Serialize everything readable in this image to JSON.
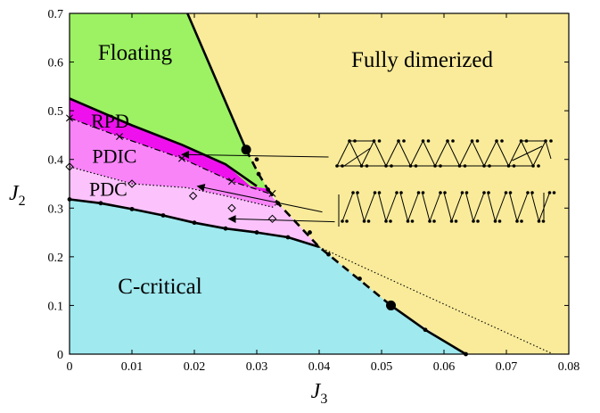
{
  "chart_data": {
    "type": "phase-diagram",
    "xlabel": "J",
    "xlabel_sub": "3",
    "ylabel": "J",
    "ylabel_sub": "2",
    "xlim": [
      0,
      0.08
    ],
    "ylim": [
      0,
      0.7
    ],
    "xticks": [
      "0",
      "0.01",
      "0.02",
      "0.03",
      "0.04",
      "0.05",
      "0.06",
      "0.07",
      "0.08"
    ],
    "yticks": [
      "0",
      "0.1",
      "0.2",
      "0.3",
      "0.4",
      "0.5",
      "0.6",
      "0.7"
    ],
    "colors": {
      "fully_dimerized": "#f9eb9a",
      "floating": "#9cf262",
      "rpd": "#ee11ee",
      "pdic": "#f884f8",
      "pdc": "#fbc2fb",
      "c_critical": "#9fe9ef"
    },
    "regions": [
      {
        "label": "Floating",
        "color_key": "floating",
        "polygon": [
          [
            0,
            0.7
          ],
          [
            0.0189,
            0.7
          ],
          [
            0.0283,
            0.42
          ],
          [
            0.0317,
            0.34
          ],
          [
            0.029,
            0.345
          ],
          [
            0.025,
            0.39
          ],
          [
            0.018,
            0.43
          ],
          [
            0.01,
            0.47
          ],
          [
            0,
            0.525
          ]
        ]
      },
      {
        "label": "RPD",
        "color_key": "rpd",
        "polygon": [
          [
            0,
            0.525
          ],
          [
            0.01,
            0.47
          ],
          [
            0.018,
            0.43
          ],
          [
            0.025,
            0.39
          ],
          [
            0.029,
            0.345
          ],
          [
            0.0317,
            0.34
          ],
          [
            0.032,
            0.33
          ],
          [
            0.026,
            0.355
          ],
          [
            0.018,
            0.402
          ],
          [
            0.008,
            0.447
          ],
          [
            0,
            0.485
          ]
        ]
      },
      {
        "label": "PDIC",
        "color_key": "pdic",
        "polygon": [
          [
            0,
            0.485
          ],
          [
            0.008,
            0.447
          ],
          [
            0.018,
            0.402
          ],
          [
            0.026,
            0.355
          ],
          [
            0.032,
            0.33
          ],
          [
            0.0334,
            0.31
          ],
          [
            0.0325,
            0.302
          ],
          [
            0.025,
            0.325
          ],
          [
            0.0188,
            0.342
          ],
          [
            0.01,
            0.35
          ],
          [
            0,
            0.385
          ]
        ]
      },
      {
        "label": "PDC",
        "color_key": "pdc",
        "polygon": [
          [
            0,
            0.385
          ],
          [
            0.01,
            0.35
          ],
          [
            0.0188,
            0.342
          ],
          [
            0.025,
            0.325
          ],
          [
            0.0325,
            0.302
          ],
          [
            0.0334,
            0.31
          ],
          [
            0.04,
            0.22
          ],
          [
            0.035,
            0.24
          ],
          [
            0.03,
            0.25
          ],
          [
            0.025,
            0.258
          ],
          [
            0.02,
            0.27
          ],
          [
            0.015,
            0.285
          ],
          [
            0.01,
            0.298
          ],
          [
            0.005,
            0.31
          ],
          [
            0,
            0.318
          ]
        ]
      },
      {
        "label": "C-critical",
        "color_key": "c_critical",
        "polygon": [
          [
            0,
            0.318
          ],
          [
            0.005,
            0.31
          ],
          [
            0.01,
            0.298
          ],
          [
            0.015,
            0.285
          ],
          [
            0.02,
            0.27
          ],
          [
            0.025,
            0.258
          ],
          [
            0.03,
            0.25
          ],
          [
            0.035,
            0.24
          ],
          [
            0.04,
            0.22
          ],
          [
            0.0515,
            0.1
          ],
          [
            0.057,
            0.05
          ],
          [
            0.0635,
            0
          ],
          [
            0,
            0
          ]
        ]
      },
      {
        "label": "Fully dimerized",
        "color_key": "fully_dimerized",
        "polygon": [
          [
            0.0189,
            0.7
          ],
          [
            0.08,
            0.7
          ],
          [
            0.08,
            0
          ],
          [
            0.0635,
            0
          ],
          [
            0.0515,
            0.1
          ],
          [
            0.04,
            0.22
          ],
          [
            0.0334,
            0.31
          ],
          [
            0.0317,
            0.34
          ],
          [
            0.0283,
            0.42
          ]
        ]
      }
    ],
    "boundaries": [
      {
        "style": "solid",
        "points": [
          [
            0.0189,
            0.7
          ],
          [
            0.0283,
            0.42
          ]
        ]
      },
      {
        "style": "dashed",
        "points": [
          [
            0.0283,
            0.42
          ],
          [
            0.0303,
            0.37
          ],
          [
            0.0318,
            0.338
          ]
        ]
      },
      {
        "style": "solid",
        "points": [
          [
            0,
            0.525
          ],
          [
            0.01,
            0.47
          ],
          [
            0.018,
            0.43
          ],
          [
            0.025,
            0.39
          ],
          [
            0.03,
            0.345
          ]
        ]
      },
      {
        "style": "dashdot",
        "points": [
          [
            0,
            0.485
          ],
          [
            0.008,
            0.447
          ],
          [
            0.018,
            0.402
          ],
          [
            0.026,
            0.355
          ],
          [
            0.032,
            0.33
          ]
        ]
      },
      {
        "style": "dotted",
        "points": [
          [
            0,
            0.385
          ],
          [
            0.01,
            0.35
          ],
          [
            0.0188,
            0.342
          ],
          [
            0.025,
            0.325
          ],
          [
            0.0325,
            0.302
          ],
          [
            0.0334,
            0.31
          ]
        ]
      },
      {
        "style": "solid",
        "points": [
          [
            0,
            0.318
          ],
          [
            0.005,
            0.31
          ],
          [
            0.01,
            0.298
          ],
          [
            0.015,
            0.285
          ],
          [
            0.02,
            0.27
          ],
          [
            0.025,
            0.258
          ],
          [
            0.03,
            0.25
          ],
          [
            0.035,
            0.24
          ],
          [
            0.04,
            0.22
          ]
        ]
      },
      {
        "style": "dashed",
        "points": [
          [
            0.0318,
            0.338
          ],
          [
            0.0334,
            0.31
          ],
          [
            0.04,
            0.22
          ],
          [
            0.0515,
            0.1
          ]
        ]
      },
      {
        "style": "solid",
        "points": [
          [
            0.0515,
            0.1
          ],
          [
            0.057,
            0.05
          ],
          [
            0.0635,
            0
          ]
        ]
      },
      {
        "style": "thin-dotted",
        "points": [
          [
            0.04,
            0.22
          ],
          [
            0.0775,
            0
          ]
        ]
      }
    ],
    "markers": {
      "big_dots": [
        [
          0.0283,
          0.42
        ],
        [
          0.0515,
          0.1
        ]
      ],
      "small_dots": [
        [
          0,
          0.318
        ],
        [
          0.005,
          0.31
        ],
        [
          0.01,
          0.298
        ],
        [
          0.015,
          0.285
        ],
        [
          0.02,
          0.27
        ],
        [
          0.025,
          0.258
        ],
        [
          0.03,
          0.25
        ],
        [
          0.035,
          0.24
        ],
        [
          0.03,
          0.4
        ],
        [
          0.0303,
          0.37
        ],
        [
          0.0318,
          0.338
        ],
        [
          0.0334,
          0.31
        ],
        [
          0.0385,
          0.25
        ],
        [
          0.0415,
          0.205
        ],
        [
          0.0465,
          0.155
        ],
        [
          0.057,
          0.05
        ],
        [
          0.0635,
          0
        ]
      ],
      "crosses": [
        [
          0,
          0.485
        ],
        [
          0.008,
          0.447
        ],
        [
          0.018,
          0.402
        ],
        [
          0.026,
          0.355
        ],
        [
          0.0325,
          0.33
        ]
      ],
      "diamonds": [
        [
          0,
          0.385
        ],
        [
          0.01,
          0.35
        ],
        [
          0.0198,
          0.325
        ],
        [
          0.026,
          0.3
        ],
        [
          0.0325,
          0.278
        ]
      ]
    },
    "region_labels": [
      {
        "text": "Floating",
        "at": [
          0.0105,
          0.605
        ],
        "size": "large"
      },
      {
        "text": "Fully dimerized",
        "at": [
          0.0565,
          0.59
        ],
        "size": "large"
      },
      {
        "text": "RPD",
        "at": [
          0.0065,
          0.465
        ],
        "size": "small"
      },
      {
        "text": "PDIC",
        "at": [
          0.0072,
          0.393
        ],
        "size": "small"
      },
      {
        "text": "PDC",
        "at": [
          0.0062,
          0.325
        ],
        "size": "small"
      },
      {
        "text": "C-critical",
        "at": [
          0.0145,
          0.125
        ],
        "size": "large"
      }
    ],
    "arrows": [
      {
        "from": [
          0.0415,
          0.405
        ],
        "to": [
          0.018,
          0.41
        ]
      },
      {
        "from": [
          0.0405,
          0.292
        ],
        "to": [
          0.0205,
          0.345
        ]
      },
      {
        "from": [
          0.0425,
          0.272
        ],
        "to": [
          0.0255,
          0.278
        ]
      }
    ]
  }
}
